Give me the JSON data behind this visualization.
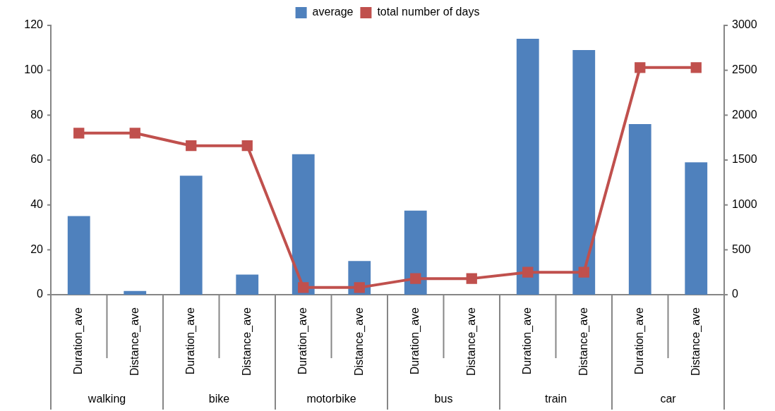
{
  "chart_data": {
    "type": "bar",
    "categories": [
      "Duration_ave",
      "Distance_ave",
      "Duration_ave",
      "Distance_ave",
      "Duration_ave",
      "Distance_ave",
      "Duration_ave",
      "Distance_ave",
      "Duration_ave",
      "Distance_ave",
      "Duration_ave",
      "Distance_ave"
    ],
    "series": [
      {
        "name": "average",
        "color": "#4f81bd",
        "values": [
          35,
          1.7,
          53,
          9,
          62.6,
          15,
          37.5,
          null,
          114,
          109,
          76,
          59
        ]
      },
      {
        "name": "total number of days",
        "type": "line",
        "axis": "y2",
        "color": "#c0504d",
        "marker": "square",
        "values": [
          1800,
          1800,
          1660,
          1660,
          80,
          80,
          180,
          180,
          250,
          250,
          2530,
          2530
        ]
      }
    ],
    "annotations": [
      "walking",
      "bike",
      "motorbike",
      "bus",
      "train",
      "car"
    ],
    "ylim": [
      0,
      120
    ],
    "yticks": [
      0,
      20,
      40,
      60,
      80,
      100,
      120
    ],
    "y2lim": [
      0,
      3000
    ],
    "y2ticks": [
      0,
      500,
      1000,
      1500,
      2000,
      2500,
      3000
    ],
    "grid": false,
    "legend": "top"
  }
}
